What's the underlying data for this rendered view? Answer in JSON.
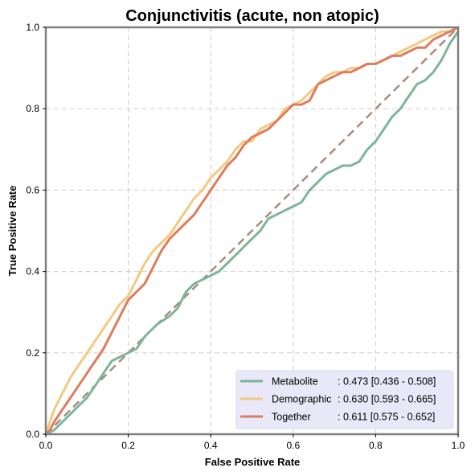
{
  "chart_data": {
    "type": "line",
    "title": "Conjunctivitis (acute, non atopic)",
    "xlabel": "False Positive Rate",
    "ylabel": "True Positive Rate",
    "xlim": [
      0,
      1
    ],
    "ylim": [
      0,
      1
    ],
    "xticks": [
      "0.0",
      "0.2",
      "0.4",
      "0.6",
      "0.8",
      "1.0"
    ],
    "yticks": [
      "0.0",
      "0.2",
      "0.4",
      "0.6",
      "0.8",
      "1.0"
    ],
    "grid": true,
    "legend_position": "lower-right",
    "reference_line": {
      "x": [
        0,
        1
      ],
      "y": [
        0,
        1
      ],
      "color": "#a98c7b",
      "style": "dashed"
    },
    "series": [
      {
        "name": "Metabolite",
        "legend_label": "Metabolite",
        "legend_value": ": 0.473 [0.436 - 0.508]",
        "color": "#7db59a",
        "x": [
          0,
          0.02,
          0.05,
          0.08,
          0.1,
          0.12,
          0.14,
          0.16,
          0.18,
          0.2,
          0.22,
          0.24,
          0.27,
          0.3,
          0.32,
          0.34,
          0.36,
          0.38,
          0.4,
          0.42,
          0.44,
          0.46,
          0.48,
          0.5,
          0.52,
          0.54,
          0.56,
          0.58,
          0.6,
          0.62,
          0.64,
          0.66,
          0.68,
          0.7,
          0.72,
          0.74,
          0.76,
          0.78,
          0.8,
          0.82,
          0.84,
          0.86,
          0.88,
          0.9,
          0.92,
          0.94,
          0.96,
          0.98,
          1.0
        ],
        "y": [
          0,
          0.01,
          0.04,
          0.07,
          0.09,
          0.12,
          0.15,
          0.18,
          0.19,
          0.2,
          0.21,
          0.24,
          0.27,
          0.29,
          0.31,
          0.35,
          0.37,
          0.38,
          0.39,
          0.4,
          0.42,
          0.44,
          0.46,
          0.48,
          0.5,
          0.53,
          0.54,
          0.55,
          0.56,
          0.57,
          0.6,
          0.62,
          0.64,
          0.65,
          0.66,
          0.66,
          0.67,
          0.7,
          0.72,
          0.75,
          0.78,
          0.8,
          0.83,
          0.86,
          0.87,
          0.89,
          0.92,
          0.96,
          0.99
        ]
      },
      {
        "name": "Demographic",
        "legend_label": "Demographic",
        "legend_value": ": 0.630 [0.593 - 0.665]",
        "color": "#f4c97f",
        "x": [
          0,
          0.01,
          0.02,
          0.04,
          0.06,
          0.08,
          0.1,
          0.12,
          0.14,
          0.16,
          0.18,
          0.2,
          0.22,
          0.24,
          0.26,
          0.28,
          0.3,
          0.32,
          0.34,
          0.36,
          0.38,
          0.4,
          0.42,
          0.44,
          0.46,
          0.48,
          0.5,
          0.52,
          0.54,
          0.56,
          0.58,
          0.6,
          0.62,
          0.64,
          0.66,
          0.68,
          0.7,
          0.72,
          0.74,
          0.76,
          0.78,
          0.8,
          0.82,
          0.84,
          0.86,
          0.88,
          0.9,
          0.92,
          0.94,
          0.96,
          0.98,
          1.0
        ],
        "y": [
          0,
          0.03,
          0.06,
          0.1,
          0.14,
          0.17,
          0.2,
          0.23,
          0.26,
          0.29,
          0.32,
          0.34,
          0.38,
          0.42,
          0.45,
          0.47,
          0.49,
          0.52,
          0.55,
          0.58,
          0.6,
          0.63,
          0.65,
          0.67,
          0.7,
          0.72,
          0.72,
          0.75,
          0.76,
          0.77,
          0.8,
          0.81,
          0.82,
          0.84,
          0.86,
          0.88,
          0.89,
          0.89,
          0.9,
          0.9,
          0.91,
          0.91,
          0.92,
          0.93,
          0.94,
          0.95,
          0.96,
          0.97,
          0.98,
          0.99,
          0.99,
          1.0
        ]
      },
      {
        "name": "Together",
        "legend_label": "Together",
        "legend_value": ": 0.611 [0.575 - 0.652]",
        "color": "#e07b5c",
        "x": [
          0,
          0.01,
          0.02,
          0.04,
          0.06,
          0.08,
          0.1,
          0.12,
          0.14,
          0.16,
          0.18,
          0.2,
          0.22,
          0.24,
          0.26,
          0.28,
          0.3,
          0.32,
          0.34,
          0.36,
          0.38,
          0.4,
          0.42,
          0.44,
          0.46,
          0.48,
          0.5,
          0.52,
          0.54,
          0.56,
          0.58,
          0.6,
          0.62,
          0.64,
          0.66,
          0.68,
          0.7,
          0.72,
          0.74,
          0.76,
          0.78,
          0.8,
          0.82,
          0.84,
          0.86,
          0.88,
          0.9,
          0.92,
          0.94,
          0.96,
          0.98,
          1.0
        ],
        "y": [
          0,
          0.01,
          0.03,
          0.06,
          0.09,
          0.12,
          0.15,
          0.18,
          0.21,
          0.25,
          0.29,
          0.33,
          0.35,
          0.37,
          0.41,
          0.45,
          0.48,
          0.5,
          0.52,
          0.54,
          0.57,
          0.6,
          0.63,
          0.66,
          0.68,
          0.71,
          0.73,
          0.74,
          0.75,
          0.77,
          0.79,
          0.81,
          0.81,
          0.82,
          0.86,
          0.87,
          0.88,
          0.89,
          0.89,
          0.9,
          0.91,
          0.91,
          0.92,
          0.93,
          0.93,
          0.94,
          0.95,
          0.95,
          0.97,
          0.98,
          0.99,
          1.0
        ]
      }
    ]
  }
}
